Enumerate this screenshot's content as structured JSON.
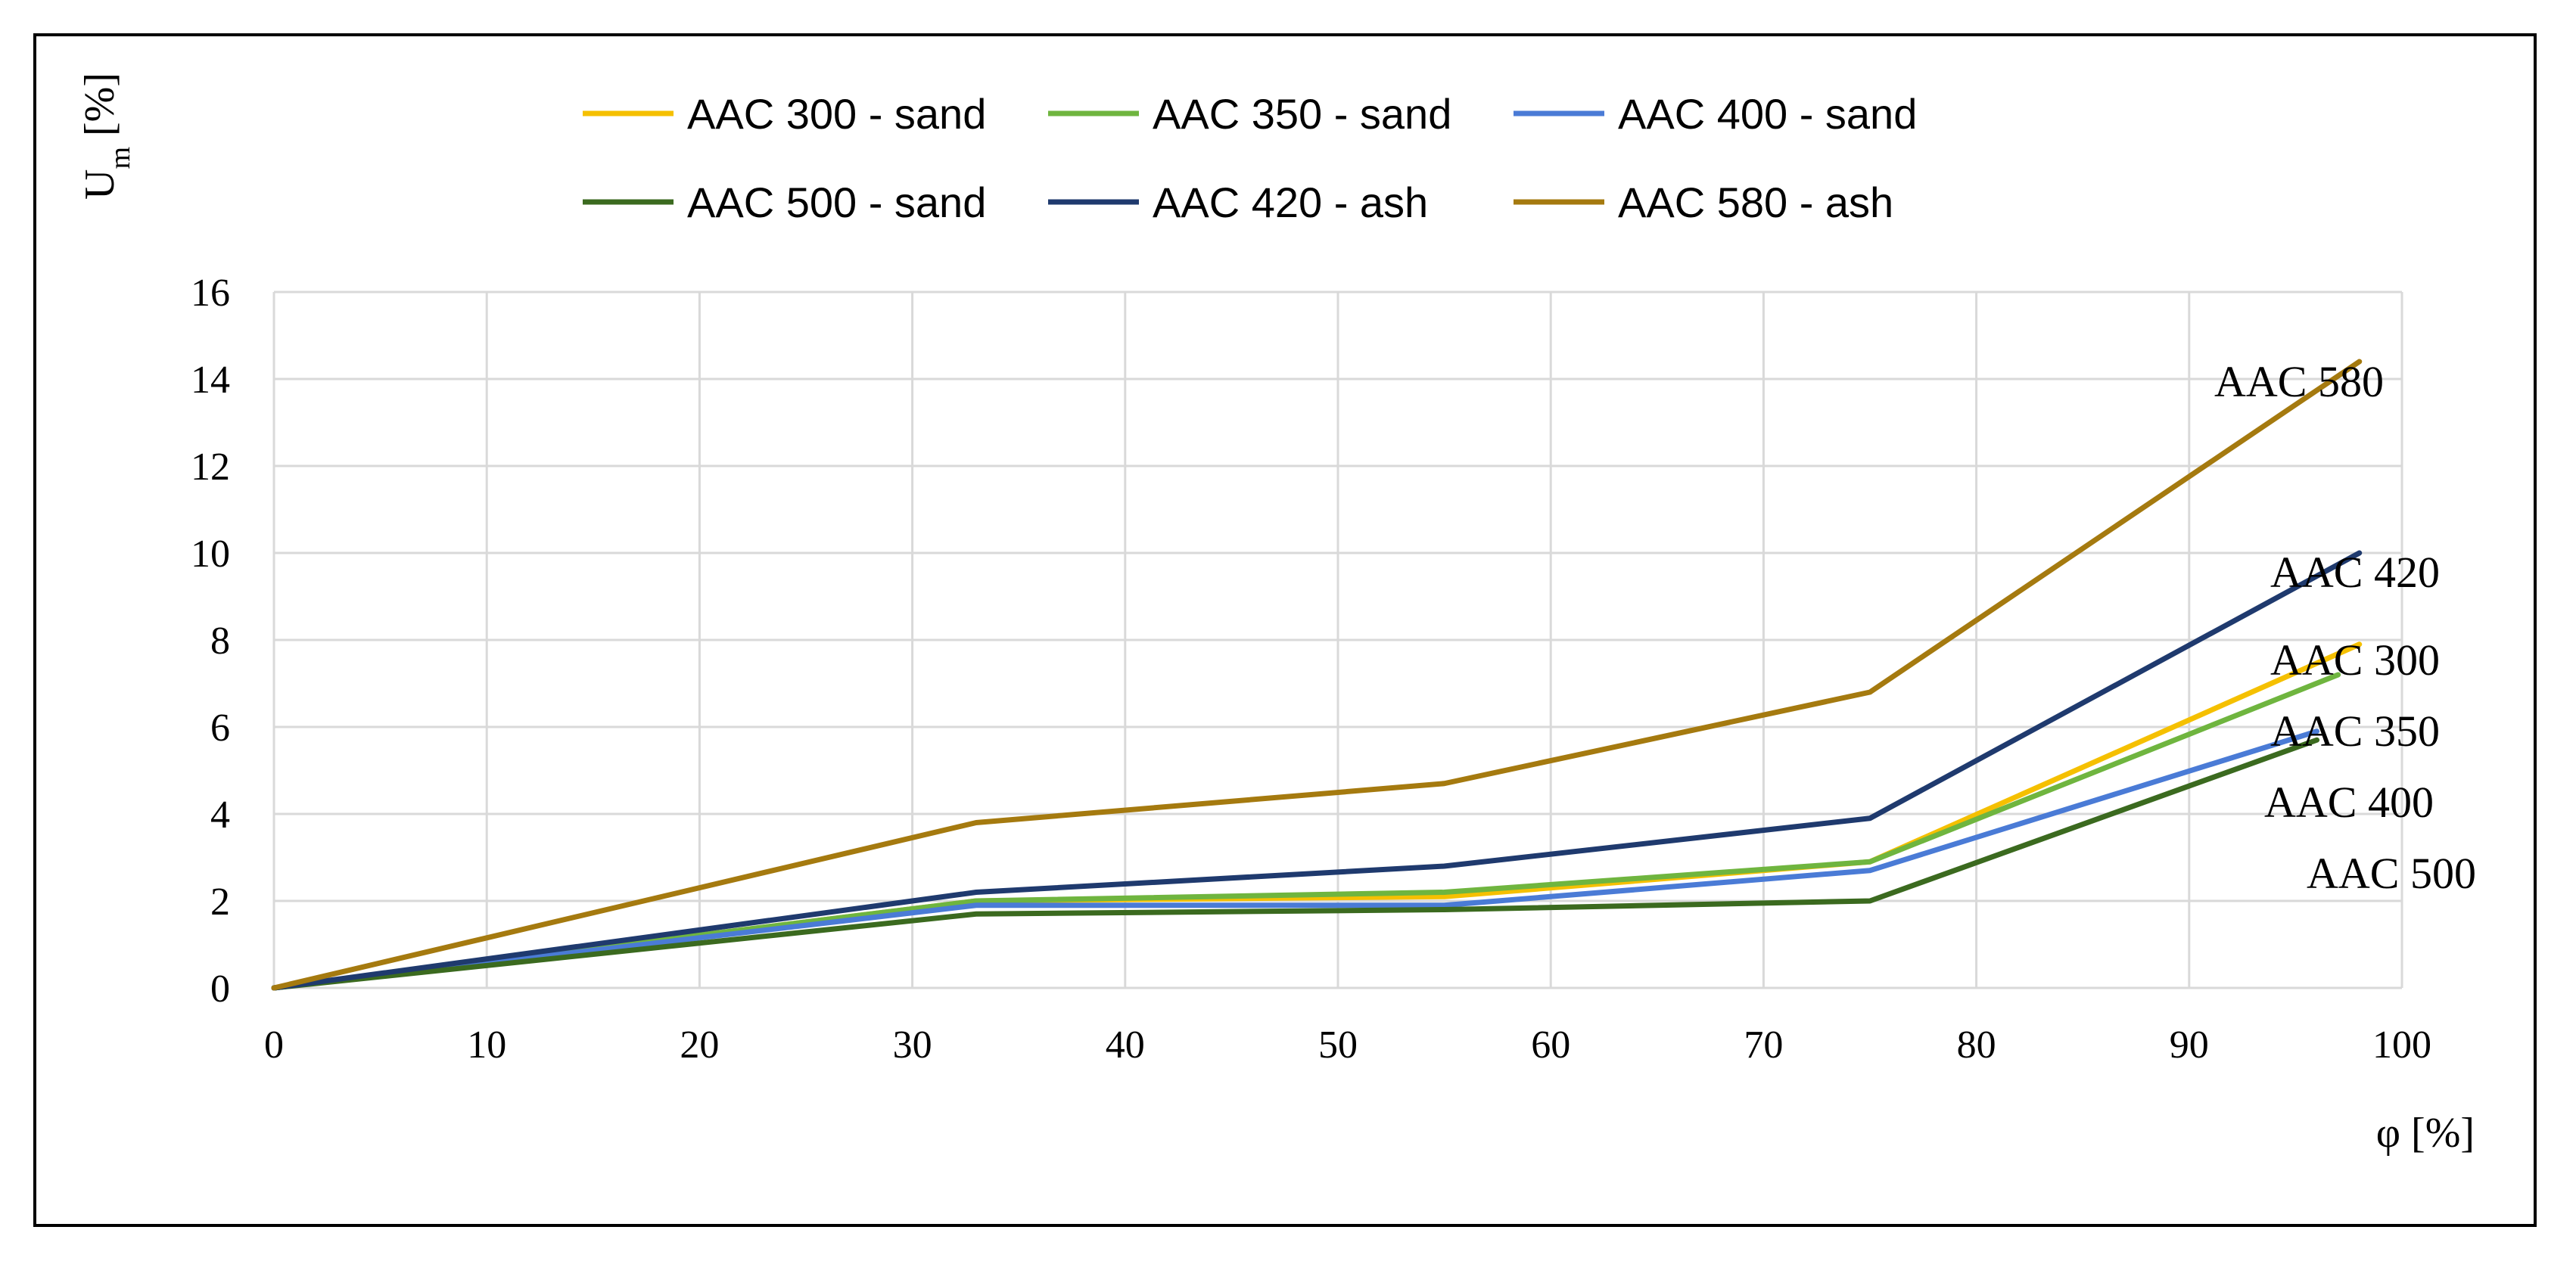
{
  "chart_data": {
    "type": "line",
    "title": "",
    "xlabel": "φ [%]",
    "ylabel": "U",
    "ylabel_subscript": "m",
    "ylabel_unit": "[%]",
    "xlim": [
      0,
      100
    ],
    "ylim": [
      0,
      16
    ],
    "x_ticks": [
      "0",
      "10",
      "20",
      "30",
      "40",
      "50",
      "60",
      "70",
      "80",
      "90",
      "100"
    ],
    "y_ticks": [
      "0",
      "2",
      "4",
      "6",
      "8",
      "10",
      "12",
      "14",
      "16"
    ],
    "grid": true,
    "legend_position": "top",
    "series": [
      {
        "name": "AAC 300 - sand",
        "color": "#f5c000",
        "x": [
          0,
          33,
          55,
          75,
          98
        ],
        "values": [
          0,
          2.0,
          2.1,
          2.9,
          7.9
        ]
      },
      {
        "name": "AAC 350 - sand",
        "color": "#6fb53f",
        "x": [
          0,
          33,
          55,
          75,
          97
        ],
        "values": [
          0,
          2.0,
          2.2,
          2.9,
          7.2
        ]
      },
      {
        "name": "AAC 400 - sand",
        "color": "#4a7bd6",
        "x": [
          0,
          33,
          55,
          75,
          96
        ],
        "values": [
          0,
          1.9,
          1.9,
          2.7,
          5.9
        ]
      },
      {
        "name": "AAC 500 - sand",
        "color": "#3b6a1f",
        "x": [
          0,
          33,
          55,
          75,
          96
        ],
        "values": [
          0,
          1.7,
          1.8,
          2.0,
          5.7
        ]
      },
      {
        "name": "AAC 420 - ash",
        "color": "#1f3a6e",
        "x": [
          0,
          33,
          55,
          75,
          98
        ],
        "values": [
          0,
          2.2,
          2.8,
          3.9,
          10.0
        ]
      },
      {
        "name": "AAC 580 - ash",
        "color": "#a57a0f",
        "x": [
          0,
          33,
          55,
          75,
          98
        ],
        "values": [
          0,
          3.8,
          4.7,
          6.8,
          14.4
        ]
      }
    ],
    "end_labels": [
      "AAC 580",
      "AAC 420",
      "AAC 300",
      "AAC 350",
      "AAC 400",
      "AAC 500"
    ]
  }
}
